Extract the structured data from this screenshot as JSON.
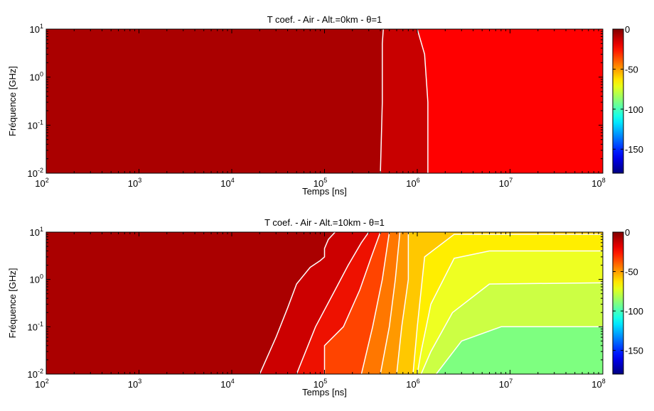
{
  "chart_data": [
    {
      "type": "heatmap",
      "title": "T coef. - Air - Alt.=0km - θ=1",
      "xlabel": "Temps [ns]",
      "ylabel": "Fréquence [GHz]",
      "xscale": "log",
      "yscale": "log",
      "xlim": [
        100,
        100000000
      ],
      "ylim": [
        0.01,
        10
      ],
      "x_ticks": [
        {
          "base": "10",
          "exp": "2"
        },
        {
          "base": "10",
          "exp": "3"
        },
        {
          "base": "10",
          "exp": "4"
        },
        {
          "base": "10",
          "exp": "5"
        },
        {
          "base": "10",
          "exp": "6"
        },
        {
          "base": "10",
          "exp": "7"
        },
        {
          "base": "10",
          "exp": "8"
        }
      ],
      "y_ticks": [
        {
          "base": "10",
          "exp": "-2"
        },
        {
          "base": "10",
          "exp": "-1"
        },
        {
          "base": "10",
          "exp": "0"
        },
        {
          "base": "10",
          "exp": "1"
        }
      ],
      "colorbar": {
        "range": [
          -180,
          0
        ],
        "ticks": [
          "0",
          "-50",
          "-100",
          "-150"
        ],
        "colormap": "jet"
      },
      "contour_levels_db": [
        -2,
        -10
      ],
      "contours": [
        {
          "level": -2,
          "points": [
            [
              400000,
              0.01
            ],
            [
              420000,
              0.3
            ],
            [
              420000,
              5
            ],
            [
              430000,
              10
            ]
          ]
        },
        {
          "level": -10,
          "points": [
            [
              1300000,
              0.01
            ],
            [
              1300000,
              0.3
            ],
            [
              1200000,
              3
            ],
            [
              1000000,
              10
            ]
          ]
        }
      ],
      "regions": [
        {
          "value_db": 0,
          "color": "#AA0000"
        },
        {
          "value_db": -5,
          "color": "#C80000"
        },
        {
          "value_db": -20,
          "color": "#FF0000"
        }
      ],
      "grid": false
    },
    {
      "type": "heatmap",
      "title": "T coef. - Air - Alt.=10km - θ=1",
      "xlabel": "Temps [ns]",
      "ylabel": "Fréquence [GHz]",
      "xscale": "log",
      "yscale": "log",
      "xlim": [
        100,
        100000000
      ],
      "ylim": [
        0.01,
        10
      ],
      "x_ticks": [
        {
          "base": "10",
          "exp": "2"
        },
        {
          "base": "10",
          "exp": "3"
        },
        {
          "base": "10",
          "exp": "4"
        },
        {
          "base": "10",
          "exp": "5"
        },
        {
          "base": "10",
          "exp": "6"
        },
        {
          "base": "10",
          "exp": "7"
        },
        {
          "base": "10",
          "exp": "8"
        }
      ],
      "y_ticks": [
        {
          "base": "10",
          "exp": "-2"
        },
        {
          "base": "10",
          "exp": "-1"
        },
        {
          "base": "10",
          "exp": "0"
        },
        {
          "base": "10",
          "exp": "1"
        }
      ],
      "colorbar": {
        "range": [
          -180,
          0
        ],
        "ticks": [
          "0",
          "-50",
          "-100",
          "-150"
        ],
        "colormap": "jet"
      },
      "contour_levels_db": [
        -2,
        -10,
        -20,
        -30,
        -40,
        -50,
        -60,
        -70,
        -80,
        -90
      ],
      "contours": [
        {
          "level": -2,
          "points": [
            [
              20000,
              0.01
            ],
            [
              30000,
              0.06
            ],
            [
              40000,
              0.25
            ],
            [
              50000,
              0.8
            ],
            [
              70000,
              1.8
            ],
            [
              90000,
              2.5
            ],
            [
              100000,
              3
            ],
            [
              100000,
              4.5
            ],
            [
              110000,
              7
            ],
            [
              130000,
              10
            ]
          ]
        },
        {
          "level": -10,
          "points": [
            [
              50000,
              0.01
            ],
            [
              80000,
              0.1
            ],
            [
              130000,
              0.6
            ],
            [
              180000,
              2
            ],
            [
              250000,
              6
            ],
            [
              300000,
              10
            ]
          ]
        },
        {
          "level": -20,
          "points": [
            [
              100000,
              0.01
            ],
            [
              100000,
              0.04
            ],
            [
              160000,
              0.1
            ],
            [
              240000,
              0.6
            ],
            [
              320000,
              3
            ],
            [
              400000,
              10
            ]
          ]
        },
        {
          "level": -30,
          "points": [
            [
              250000,
              0.01
            ],
            [
              330000,
              0.1
            ],
            [
              420000,
              1
            ],
            [
              500000,
              10
            ]
          ]
        },
        {
          "level": -40,
          "points": [
            [
              400000,
              0.01
            ],
            [
              500000,
              0.1
            ],
            [
              580000,
              1
            ],
            [
              650000,
              10
            ]
          ]
        },
        {
          "level": -50,
          "points": [
            [
              600000,
              0.01
            ],
            [
              680000,
              0.1
            ],
            [
              800000,
              1
            ],
            [
              800000,
              10
            ]
          ]
        },
        {
          "level": -60,
          "points": [
            [
              900000,
              0.01
            ],
            [
              1000000,
              0.1
            ],
            [
              1200000,
              3
            ],
            [
              2500000,
              9
            ],
            [
              100000000,
              9
            ]
          ]
        },
        {
          "level": -70,
          "points": [
            [
              1000000,
              0.01
            ],
            [
              1100000,
              0.03
            ],
            [
              1400000,
              0.3
            ],
            [
              2500000,
              2.8
            ],
            [
              6000000,
              4
            ],
            [
              100000000,
              4
            ]
          ]
        },
        {
          "level": -80,
          "points": [
            [
              1100000,
              0.01
            ],
            [
              1400000,
              0.03
            ],
            [
              2400000,
              0.2
            ],
            [
              6000000,
              0.8
            ],
            [
              100000000,
              0.85
            ]
          ]
        },
        {
          "level": -90,
          "points": [
            [
              1600000,
              0.01
            ],
            [
              3000000,
              0.05
            ],
            [
              8000000,
              0.1
            ],
            [
              100000000,
              0.1
            ]
          ]
        }
      ],
      "regions": [
        {
          "value_db": 0,
          "color": "#AA0000"
        },
        {
          "value_db": -6,
          "color": "#CC0000"
        },
        {
          "value_db": -15,
          "color": "#EE1100"
        },
        {
          "value_db": -25,
          "color": "#FF4400"
        },
        {
          "value_db": -35,
          "color": "#FF7700"
        },
        {
          "value_db": -45,
          "color": "#FF9900"
        },
        {
          "value_db": -55,
          "color": "#FFC800"
        },
        {
          "value_db": -65,
          "color": "#FFEE00"
        },
        {
          "value_db": -75,
          "color": "#EEFF22"
        },
        {
          "value_db": -85,
          "color": "#CCFF44"
        },
        {
          "value_db": -95,
          "color": "#7EFF80"
        }
      ],
      "grid": false
    }
  ]
}
